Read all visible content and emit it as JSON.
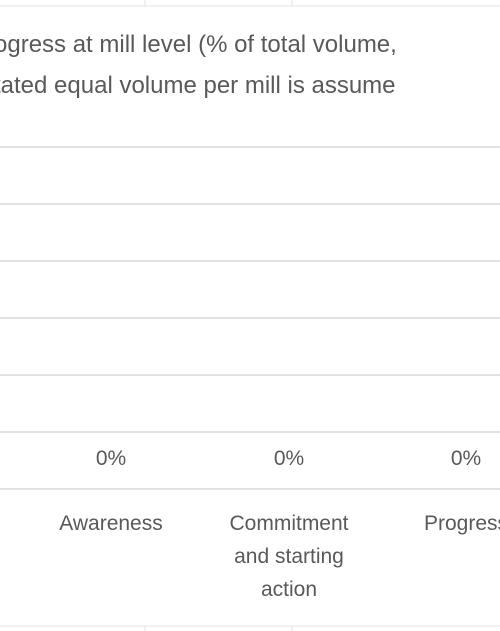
{
  "chart_data": {
    "type": "bar",
    "title": "…gress at mill level (% of total volume, …ated equal volume per mill is assume…",
    "title_lines": [
      "ogress at mill level (% of total volume,",
      "tated equal volume per mill is assume"
    ],
    "categories": [
      "Awareness",
      "Commitment and starting action",
      "Progress"
    ],
    "category_labels_display": [
      "Awareness",
      "Commitment\nand starting\naction",
      "Progress"
    ],
    "values": [
      0,
      0,
      0
    ],
    "data_labels": [
      "0%",
      "0%",
      "0%"
    ],
    "ylim": [
      0,
      1
    ],
    "grid": true,
    "colors": {
      "text": "#595959",
      "gridline": "#d9d9d9",
      "sheet_grid": "#e3e3e3"
    }
  }
}
